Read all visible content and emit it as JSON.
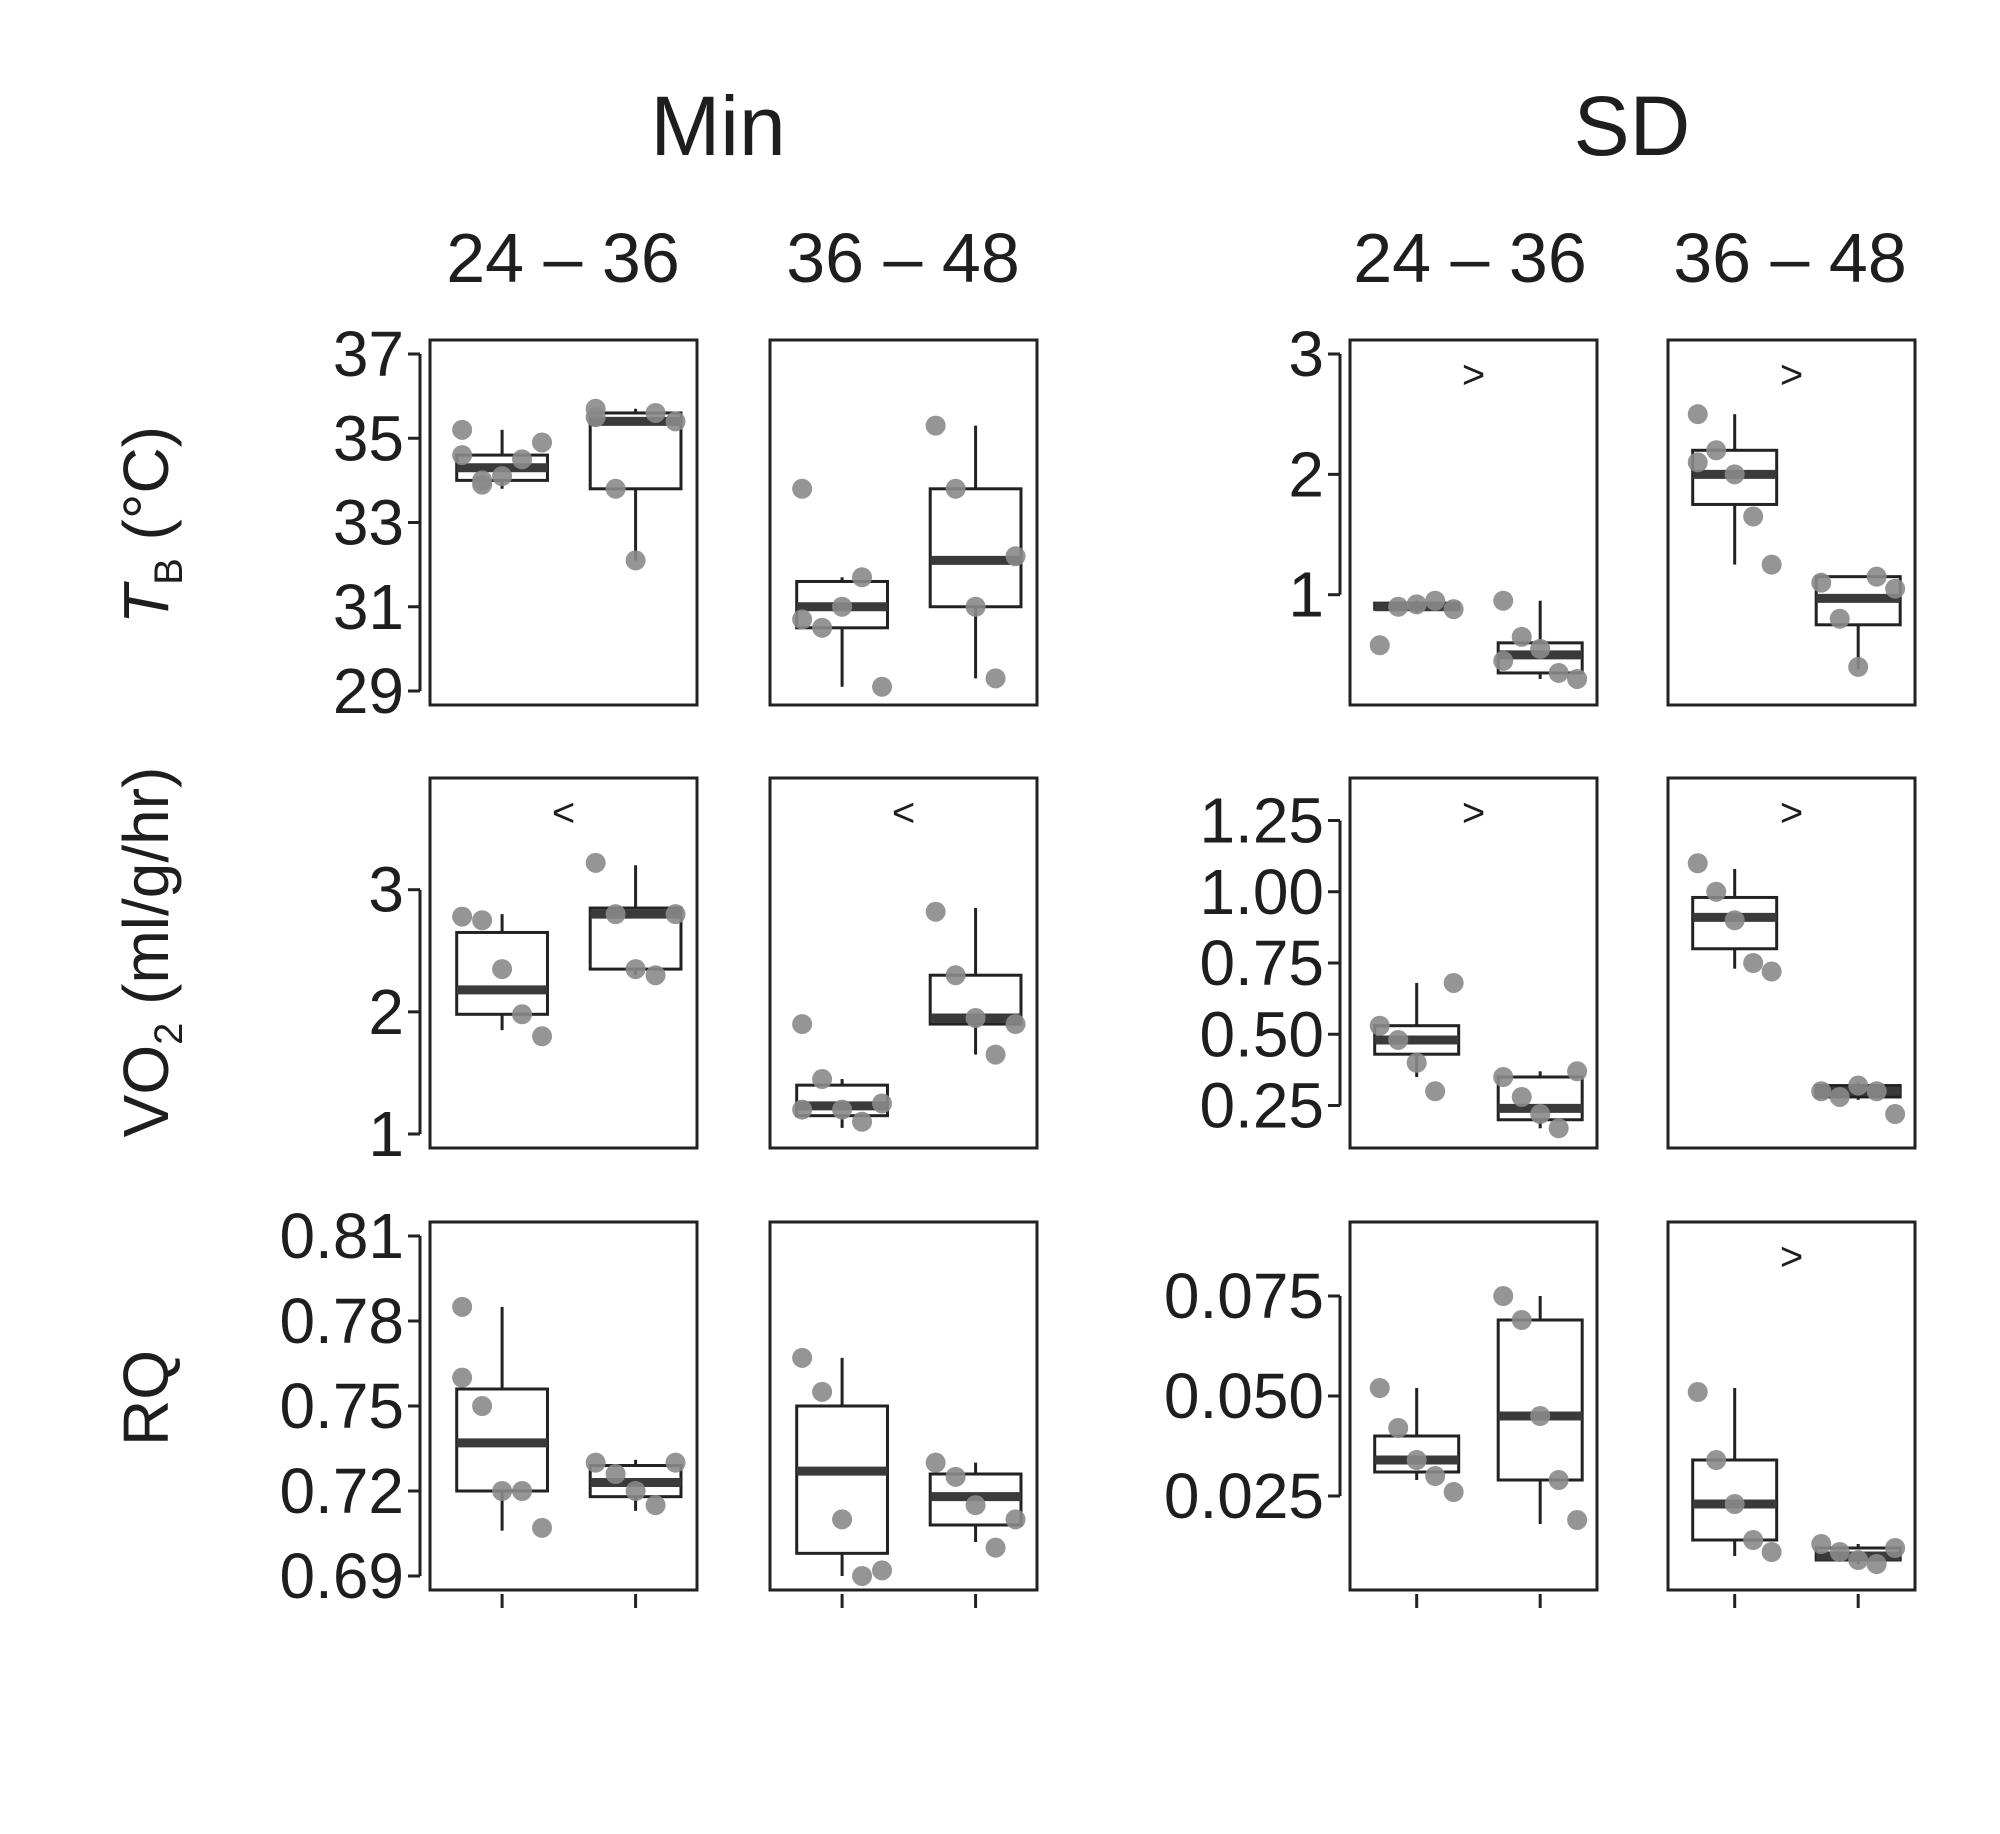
{
  "chart_data": {
    "type": "boxplot",
    "group_titles": [
      "Min",
      "SD"
    ],
    "interval_labels": [
      "24 – 36",
      "36 – 48"
    ],
    "row_labels": [
      {
        "main": "T",
        "sub": "B",
        "unit": " (°C)"
      },
      {
        "main": "VO",
        "sub": "2",
        "unit": " (ml/g/hr)"
      },
      {
        "main": "RQ",
        "sub": "",
        "unit": ""
      }
    ],
    "colors": {
      "point": "#8a8a8a",
      "median": "#3a3a3a",
      "frame": "#222222",
      "text": "#1e1e1e"
    },
    "rows": [
      {
        "groups": [
          {
            "ylim": [
              29,
              37
            ],
            "ticks": [
              "37",
              "35",
              "33",
              "31",
              "29"
            ],
            "panels": [
              {
                "interval": "24 – 36",
                "marker": "",
                "boxes": [
                  {
                    "q1": 34.0,
                    "median": 34.3,
                    "q3": 34.6,
                    "lo": 33.8,
                    "hi": 35.2,
                    "points": [
                      35.2,
                      33.9,
                      34.1,
                      34.5,
                      34.9,
                      34.6,
                      34.0
                    ]
                  },
                  {
                    "q1": 33.8,
                    "median": 35.4,
                    "q3": 35.6,
                    "lo": 32.1,
                    "hi": 35.7,
                    "points": [
                      35.5,
                      33.8,
                      32.1,
                      35.6,
                      35.4,
                      35.7
                    ]
                  }
                ]
              },
              {
                "interval": "36 – 48",
                "marker": "",
                "boxes": [
                  {
                    "q1": 30.5,
                    "median": 31.0,
                    "q3": 31.6,
                    "lo": 29.1,
                    "hi": 31.7,
                    "points": [
                      33.8,
                      30.5,
                      31.0,
                      31.7,
                      29.1,
                      30.7
                    ]
                  },
                  {
                    "q1": 31.0,
                    "median": 32.1,
                    "q3": 33.8,
                    "lo": 29.3,
                    "hi": 35.3,
                    "points": [
                      35.3,
                      33.8,
                      31.0,
                      29.3,
                      32.2
                    ]
                  }
                ]
              }
            ]
          },
          {
            "ylim": [
              0.2,
              3.0
            ],
            "ticks": [
              "3",
              "2",
              "1"
            ],
            "panels": [
              {
                "interval": "24 – 36",
                "marker": ">",
                "boxes": [
                  {
                    "q1": 0.88,
                    "median": 0.9,
                    "q3": 0.93,
                    "lo": 0.85,
                    "hi": 0.95,
                    "points": [
                      0.58,
                      0.9,
                      0.92,
                      0.95,
                      0.88
                    ]
                  },
                  {
                    "q1": 0.35,
                    "median": 0.5,
                    "q3": 0.6,
                    "lo": 0.3,
                    "hi": 0.95,
                    "points": [
                      0.95,
                      0.65,
                      0.55,
                      0.35,
                      0.3,
                      0.45
                    ]
                  }
                ]
              },
              {
                "interval": "36 – 48",
                "marker": ">",
                "boxes": [
                  {
                    "q1": 1.75,
                    "median": 2.0,
                    "q3": 2.2,
                    "lo": 1.25,
                    "hi": 2.5,
                    "points": [
                      2.5,
                      2.2,
                      2.0,
                      1.65,
                      1.25,
                      2.1
                    ]
                  },
                  {
                    "q1": 0.75,
                    "median": 0.97,
                    "q3": 1.15,
                    "lo": 0.38,
                    "hi": 1.15,
                    "points": [
                      1.1,
                      0.8,
                      0.4,
                      1.15,
                      1.05
                    ]
                  }
                ]
              }
            ]
          }
        ]
      },
      {
        "groups": [
          {
            "ylim": [
              1.0,
              3.8
            ],
            "ticks": [
              "3",
              "2",
              "1"
            ],
            "panels": [
              {
                "interval": "24 – 36",
                "marker": "<",
                "boxes": [
                  {
                    "q1": 1.98,
                    "median": 2.18,
                    "q3": 2.65,
                    "lo": 1.85,
                    "hi": 2.8,
                    "points": [
                      2.78,
                      2.75,
                      2.35,
                      1.98,
                      1.8
                    ]
                  },
                  {
                    "q1": 2.35,
                    "median": 2.8,
                    "q3": 2.85,
                    "lo": 2.3,
                    "hi": 3.2,
                    "points": [
                      3.22,
                      2.8,
                      2.35,
                      2.3,
                      2.8
                    ]
                  }
                ]
              },
              {
                "interval": "36 – 48",
                "marker": "<",
                "boxes": [
                  {
                    "q1": 1.15,
                    "median": 1.23,
                    "q3": 1.4,
                    "lo": 1.05,
                    "hi": 1.45,
                    "points": [
                      1.9,
                      1.45,
                      1.2,
                      1.1,
                      1.25,
                      1.2
                    ]
                  },
                  {
                    "q1": 1.9,
                    "median": 1.95,
                    "q3": 2.3,
                    "lo": 1.65,
                    "hi": 2.85,
                    "points": [
                      2.82,
                      2.3,
                      1.95,
                      1.65,
                      1.9
                    ]
                  }
                ]
              }
            ]
          },
          {
            "ylim": [
              0.15,
              1.35
            ],
            "ticks": [
              "1.25",
              "1.00",
              "0.75",
              "0.50",
              "0.25"
            ],
            "panels": [
              {
                "interval": "24 – 36",
                "marker": ">",
                "boxes": [
                  {
                    "q1": 0.43,
                    "median": 0.48,
                    "q3": 0.53,
                    "lo": 0.35,
                    "hi": 0.68,
                    "points": [
                      0.53,
                      0.48,
                      0.4,
                      0.3,
                      0.68
                    ]
                  },
                  {
                    "q1": 0.2,
                    "median": 0.24,
                    "q3": 0.35,
                    "lo": 0.17,
                    "hi": 0.37,
                    "points": [
                      0.35,
                      0.28,
                      0.22,
                      0.17,
                      0.37
                    ]
                  }
                ]
              },
              {
                "interval": "36 – 48",
                "marker": ">",
                "boxes": [
                  {
                    "q1": 0.8,
                    "median": 0.91,
                    "q3": 0.98,
                    "lo": 0.73,
                    "hi": 1.08,
                    "points": [
                      1.1,
                      1.0,
                      0.9,
                      0.75,
                      0.72
                    ]
                  },
                  {
                    "q1": 0.28,
                    "median": 0.3,
                    "q3": 0.32,
                    "lo": 0.27,
                    "hi": 0.33,
                    "points": [
                      0.3,
                      0.28,
                      0.32,
                      0.3,
                      0.22
                    ]
                  }
                ]
              }
            ]
          }
        ]
      },
      {
        "groups": [
          {
            "ylim": [
              0.69,
              0.81
            ],
            "ticks": [
              "0.81",
              "0.78",
              "0.75",
              "0.72",
              "0.69"
            ],
            "panels": [
              {
                "interval": "24 – 36",
                "marker": "",
                "boxes": [
                  {
                    "q1": 0.72,
                    "median": 0.737,
                    "q3": 0.756,
                    "lo": 0.706,
                    "hi": 0.785,
                    "points": [
                      0.76,
                      0.75,
                      0.72,
                      0.72,
                      0.707,
                      0.785
                    ]
                  },
                  {
                    "q1": 0.718,
                    "median": 0.723,
                    "q3": 0.729,
                    "lo": 0.713,
                    "hi": 0.731,
                    "points": [
                      0.73,
                      0.726,
                      0.72,
                      0.715,
                      0.73
                    ]
                  }
                ]
              },
              {
                "interval": "36 – 48",
                "marker": "",
                "boxes": [
                  {
                    "q1": 0.698,
                    "median": 0.727,
                    "q3": 0.75,
                    "lo": 0.69,
                    "hi": 0.767,
                    "points": [
                      0.767,
                      0.755,
                      0.71,
                      0.69,
                      0.692
                    ]
                  },
                  {
                    "q1": 0.708,
                    "median": 0.718,
                    "q3": 0.726,
                    "lo": 0.702,
                    "hi": 0.73,
                    "points": [
                      0.73,
                      0.725,
                      0.715,
                      0.7,
                      0.71
                    ]
                  }
                ]
              }
            ]
          },
          {
            "ylim": [
              0.005,
              0.09
            ],
            "ticks": [
              "0.075",
              "0.050",
              "0.025"
            ],
            "panels": [
              {
                "interval": "24 – 36",
                "marker": "",
                "boxes": [
                  {
                    "q1": 0.031,
                    "median": 0.034,
                    "q3": 0.04,
                    "lo": 0.029,
                    "hi": 0.052,
                    "points": [
                      0.052,
                      0.042,
                      0.034,
                      0.03,
                      0.026
                    ]
                  },
                  {
                    "q1": 0.029,
                    "median": 0.045,
                    "q3": 0.069,
                    "lo": 0.018,
                    "hi": 0.075,
                    "points": [
                      0.075,
                      0.069,
                      0.045,
                      0.029,
                      0.019
                    ]
                  }
                ]
              },
              {
                "interval": "36 – 48",
                "marker": ">",
                "boxes": [
                  {
                    "q1": 0.014,
                    "median": 0.023,
                    "q3": 0.034,
                    "lo": 0.01,
                    "hi": 0.052,
                    "points": [
                      0.051,
                      0.034,
                      0.023,
                      0.014,
                      0.011
                    ]
                  },
                  {
                    "q1": 0.009,
                    "median": 0.01,
                    "q3": 0.012,
                    "lo": 0.008,
                    "hi": 0.013,
                    "points": [
                      0.013,
                      0.011,
                      0.009,
                      0.008,
                      0.012
                    ]
                  }
                ]
              }
            ]
          }
        ]
      }
    ]
  }
}
